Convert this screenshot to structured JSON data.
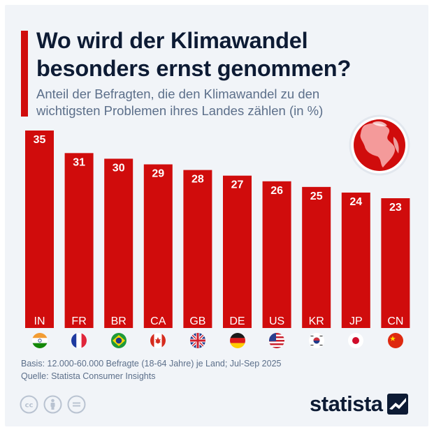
{
  "header": {
    "title_line1": "Wo wird der Klimawandel",
    "title_line2": "besonders ernst genommen?",
    "subtitle_line1": "Anteil der Befragten, die den Klimawandel zu den",
    "subtitle_line2": "wichtigsten Problemen ihres Landes zählen (in %)"
  },
  "chart_data": {
    "type": "bar",
    "title": "Wo wird der Klimawandel besonders ernst genommen?",
    "subtitle": "Anteil der Befragten, die den Klimawandel zu den wichtigsten Problemen ihres Landes zählen (in %)",
    "categories": [
      "IN",
      "FR",
      "BR",
      "CA",
      "GB",
      "DE",
      "US",
      "KR",
      "JP",
      "CN"
    ],
    "values": [
      35,
      31,
      30,
      29,
      28,
      27,
      26,
      25,
      24,
      23
    ],
    "xlabel": "",
    "ylabel": "",
    "ylim": [
      0,
      35
    ],
    "bar_color": "#d00c0c",
    "label_color": "#ffffff",
    "grid": false
  },
  "flags": [
    "india-flag-icon",
    "france-flag-icon",
    "brazil-flag-icon",
    "canada-flag-icon",
    "uk-flag-icon",
    "germany-flag-icon",
    "usa-flag-icon",
    "south-korea-flag-icon",
    "japan-flag-icon",
    "china-flag-icon"
  ],
  "footer": {
    "basis": "Basis: 12.000-60.000 Befragte (18-64 Jahre) je Land; Jul-Sep 2025",
    "source": "Quelle: Statista Consumer Insights",
    "brand": "statista"
  },
  "colors": {
    "accent": "#d00c0c",
    "title": "#0d1b34",
    "muted": "#5c6f8a",
    "background": "#f1f4f8"
  }
}
